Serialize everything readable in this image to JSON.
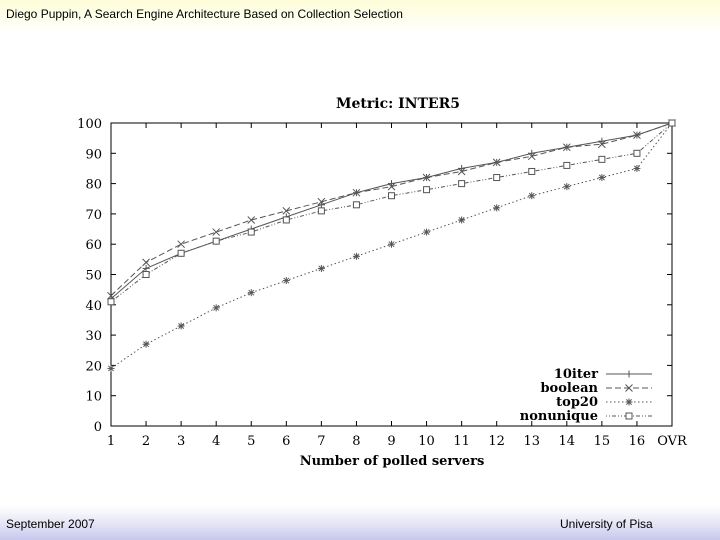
{
  "header": {
    "title": "Diego Puppin, A Search Engine Architecture Based on Collection Selection"
  },
  "footer": {
    "left": "September 2007",
    "right": "University of Pisa"
  },
  "colors": {
    "series_line": "#555555",
    "frame": "#000000",
    "header_band": "#fdfdd8",
    "footer_band": "#c8c8ee"
  },
  "chart_data": {
    "type": "line",
    "title": "Metric: INTER5",
    "xlabel": "Number of polled servers",
    "ylabel": "",
    "categories": [
      "1",
      "2",
      "3",
      "4",
      "5",
      "6",
      "7",
      "8",
      "9",
      "10",
      "11",
      "12",
      "13",
      "14",
      "15",
      "16",
      "OVR"
    ],
    "yticks": [
      "0",
      "10",
      "20",
      "30",
      "40",
      "50",
      "60",
      "70",
      "80",
      "90",
      "100"
    ],
    "ylim": [
      0,
      100
    ],
    "grid": false,
    "legend_position": "bottom-right",
    "series": [
      {
        "name": "10iter",
        "marker": "plus",
        "dash": "solid",
        "values": [
          42,
          52,
          57,
          61,
          65,
          69,
          73,
          77,
          80,
          82,
          85,
          87,
          90,
          92,
          94,
          96,
          100
        ]
      },
      {
        "name": "boolean",
        "marker": "cross",
        "dash": "dashed",
        "values": [
          43,
          54,
          60,
          64,
          68,
          71,
          74,
          77,
          79,
          82,
          84,
          87,
          89,
          92,
          93,
          96,
          100
        ]
      },
      {
        "name": "top20",
        "marker": "star",
        "dash": "dotted",
        "values": [
          19,
          27,
          33,
          39,
          44,
          48,
          52,
          56,
          60,
          64,
          68,
          72,
          76,
          79,
          82,
          85,
          100
        ]
      },
      {
        "name": "nonunique",
        "marker": "square",
        "dash": "dotdash",
        "values": [
          41,
          50,
          57,
          61,
          64,
          68,
          71,
          73,
          76,
          78,
          80,
          82,
          84,
          86,
          88,
          90,
          100
        ]
      }
    ]
  }
}
